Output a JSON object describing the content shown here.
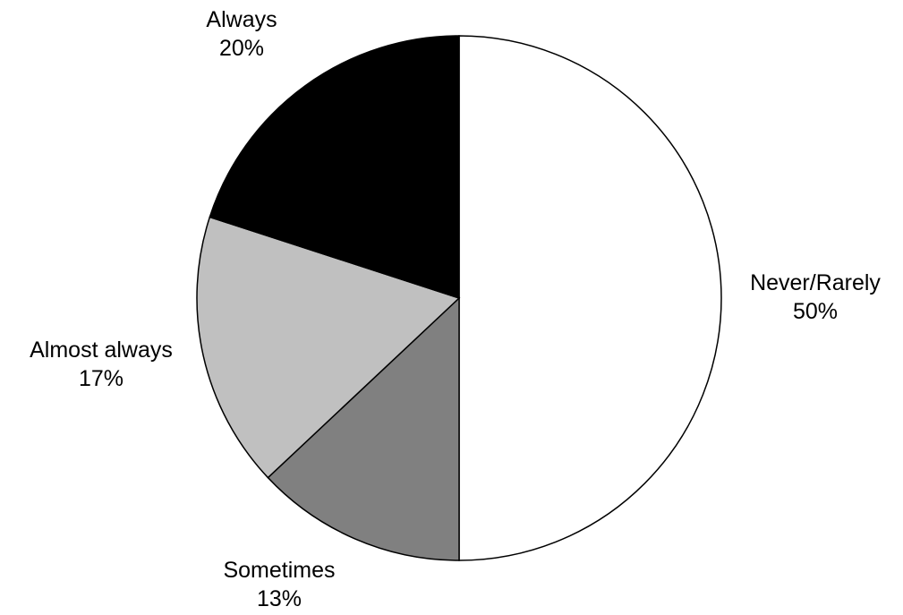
{
  "chart_data": {
    "type": "pie",
    "slices": [
      {
        "label": "Never/Rarely",
        "value": 50,
        "value_text": "50%",
        "color": "#ffffff"
      },
      {
        "label": "Sometimes",
        "value": 13,
        "value_text": "13%",
        "color": "#808080"
      },
      {
        "label": "Almost always",
        "value": 17,
        "value_text": "17%",
        "color": "#c0c0c0"
      },
      {
        "label": "Always",
        "value": 20,
        "value_text": "20%",
        "color": "#000000"
      }
    ],
    "start_direction": "top",
    "direction": "clockwise",
    "legend": "none",
    "grid": false
  }
}
